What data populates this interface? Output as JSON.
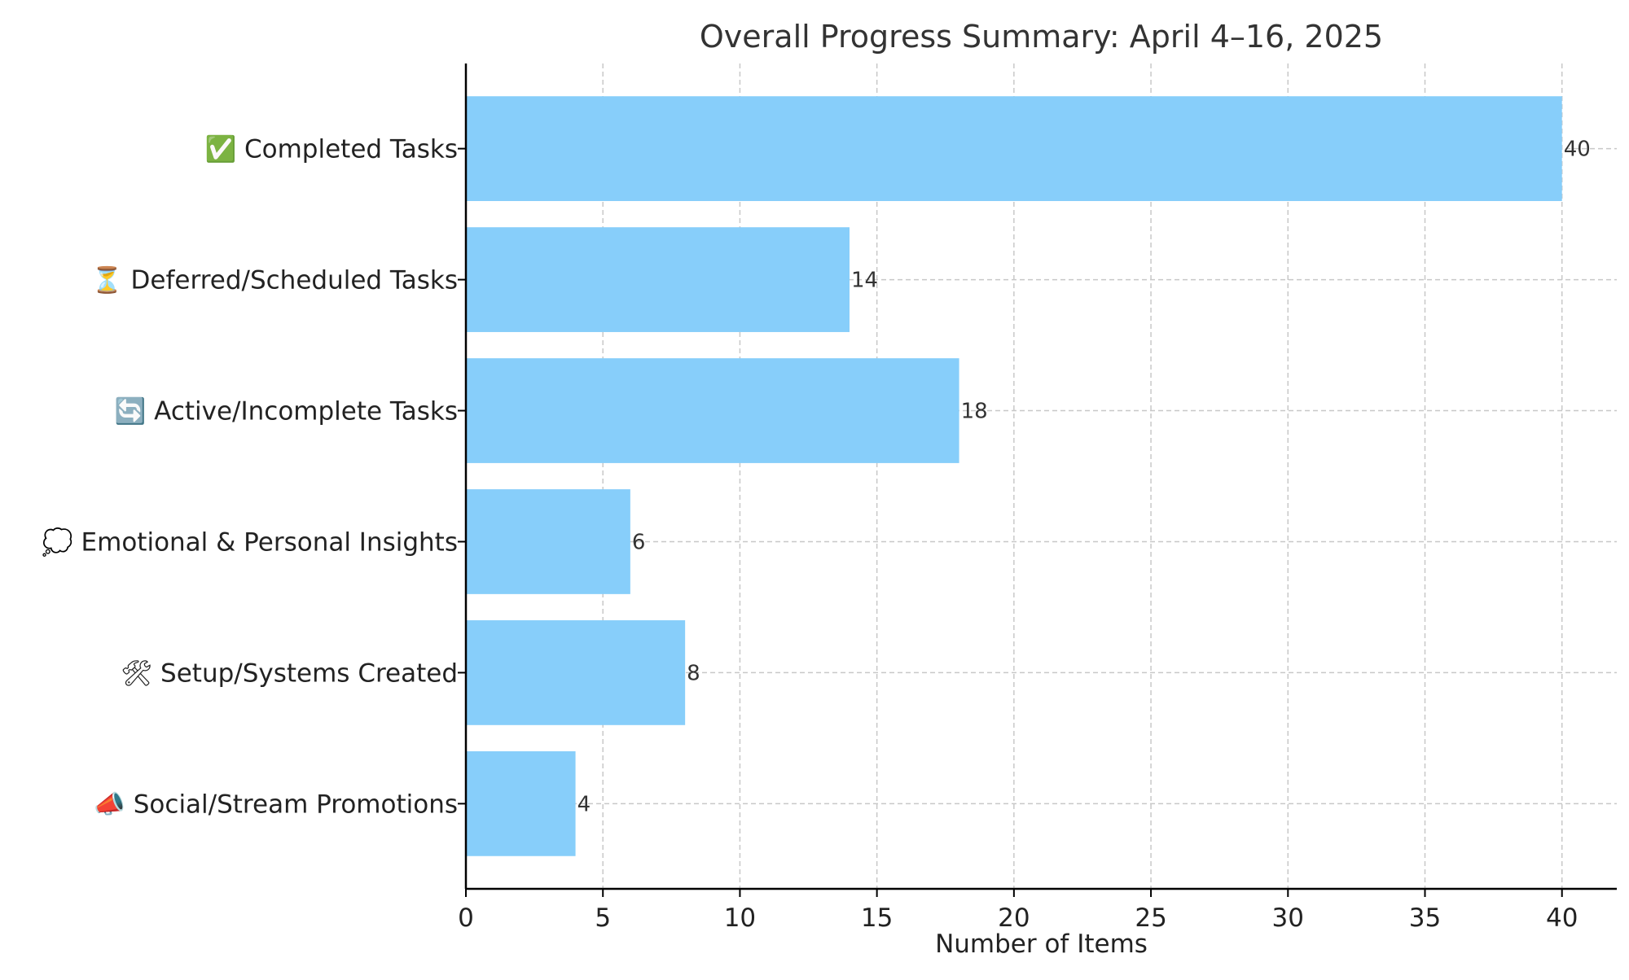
{
  "colors": {
    "bar": "#87CEFA",
    "text": "#222222",
    "grid": "#c8c8c8"
  },
  "chart_data": {
    "type": "bar",
    "orientation": "horizontal",
    "title": "Overall Progress Summary: April 4–16, 2025",
    "xlabel": "Number of Items",
    "ylabel": "",
    "categories": [
      "✅ Completed Tasks",
      "⏳ Deferred/Scheduled Tasks",
      "🔄 Active/Incomplete Tasks",
      "💭 Emotional & Personal Insights",
      "🛠 Setup/Systems Created",
      "📣 Social/Stream Promotions"
    ],
    "values": [
      40,
      14,
      18,
      6,
      8,
      4
    ],
    "xlim": [
      0,
      42
    ],
    "xticks": [
      0,
      5,
      10,
      15,
      20,
      25,
      30,
      35,
      40
    ],
    "grid": true,
    "data_labels": true
  }
}
